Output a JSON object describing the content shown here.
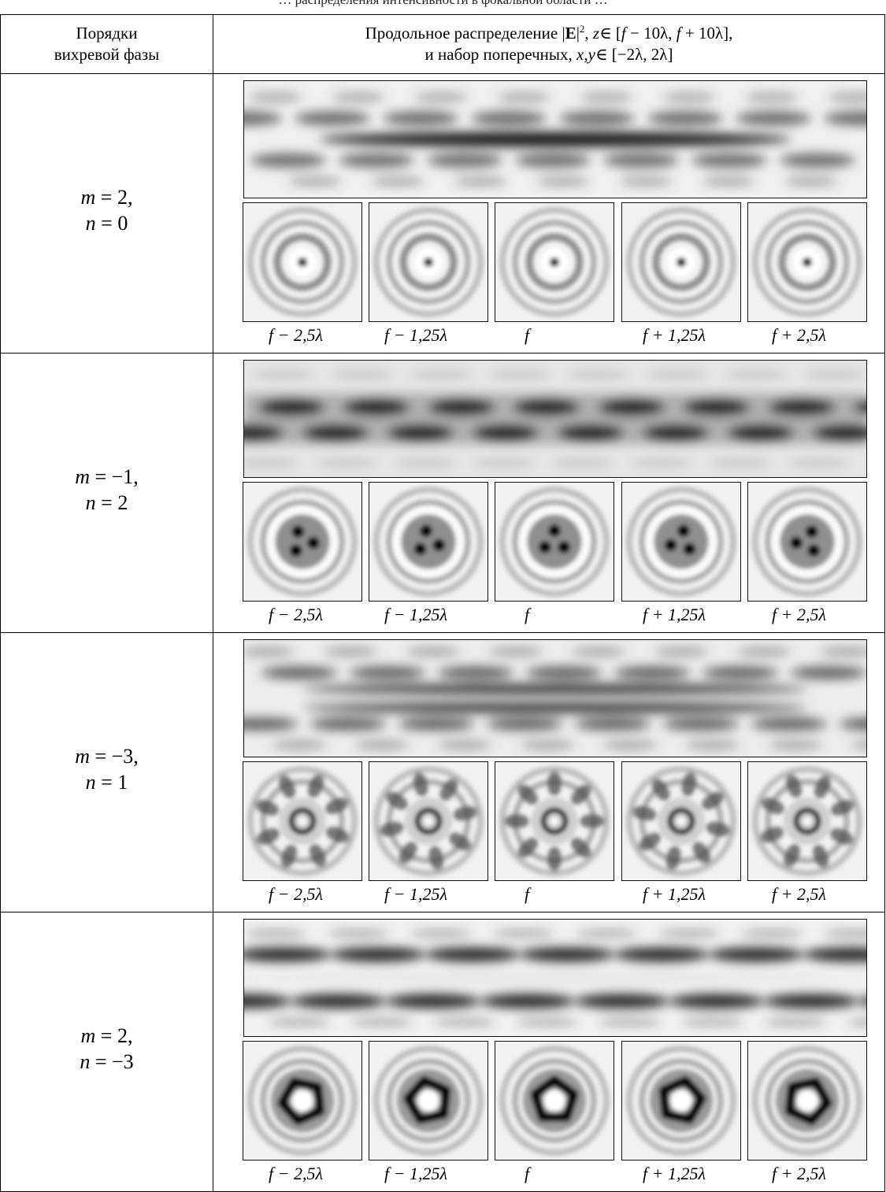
{
  "caption_fragment": "… распределения интенсивности в фокальной области …",
  "header": {
    "col1_line1": "Порядки",
    "col1_line2": "вихревой фазы",
    "col2_line1_a": "Продольное распределение |",
    "col2_line1_E": "E",
    "col2_line1_b": "|",
    "col2_line1_sup": "2",
    "col2_line1_c": ", ",
    "col2_line1_z": "z",
    "col2_line1_d": "∈ [",
    "col2_line1_f1": "f",
    "col2_line1_e": " − 10λ, ",
    "col2_line1_f2": "f",
    "col2_line1_g": " + 10λ],",
    "col2_line2_a": "и набор поперечных, ",
    "col2_line2_xy": "x,y",
    "col2_line2_b": "∈ [−2λ, 2λ]"
  },
  "z_labels": [
    "f − 2,5λ",
    "f − 1,25λ",
    "f",
    "f + 1,25λ",
    "f + 2,5λ"
  ],
  "rows": [
    {
      "m_var": "m",
      "m_val": " = 2,",
      "n_var": "n",
      "n_val": " = 0",
      "pattern": "m2n0"
    },
    {
      "m_var": "m",
      "m_val": " = −1,",
      "n_var": "n",
      "n_val": " = 2",
      "pattern": "m-1n2"
    },
    {
      "m_var": "m",
      "m_val": " = −3,",
      "n_var": "n",
      "n_val": " = 1",
      "pattern": "m-3n1"
    },
    {
      "m_var": "m",
      "m_val": " = 2,",
      "n_var": "n",
      "n_val": " = −3",
      "pattern": "m2n-3"
    }
  ]
}
